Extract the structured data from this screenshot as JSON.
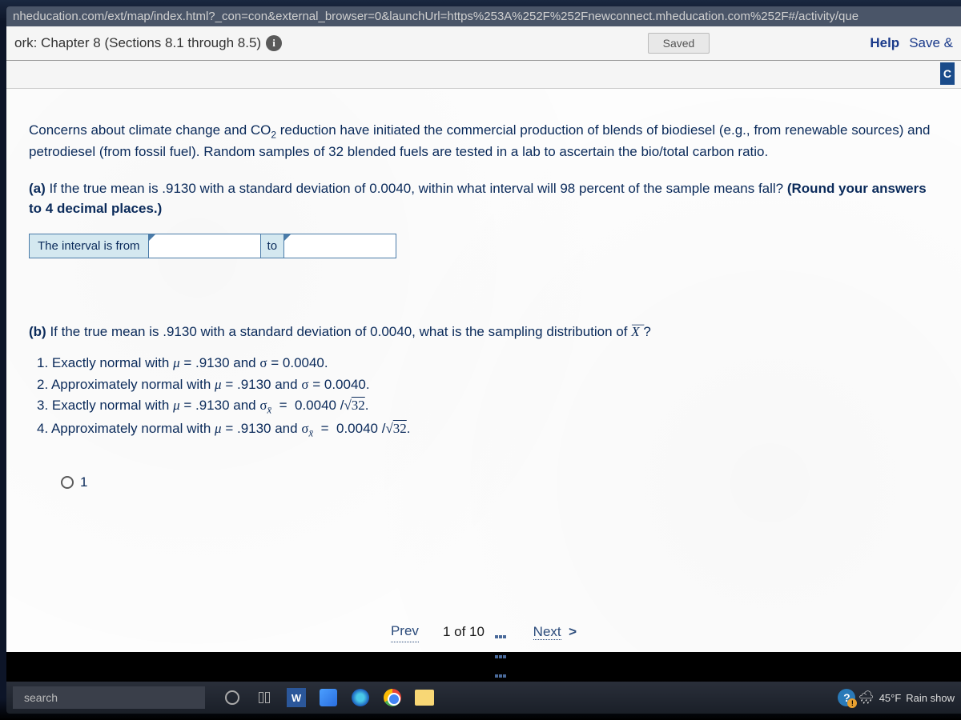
{
  "url": "nheducation.com/ext/map/index.html?_con=con&external_browser=0&launchUrl=https%253A%252F%252Fnewconnect.mheducation.com%252F#/activity/que",
  "header": {
    "title_prefix": "ork: Chapter 8 (Sections 8.1 through 8.5)",
    "saved_label": "Saved",
    "help_label": "Help",
    "save_exit_label": "Save &",
    "check_label": "C"
  },
  "question": {
    "intro": "Concerns about climate change and CO₂ reduction have initiated the commercial production of blends of biodiesel (e.g., from renewable sources) and petrodiesel (from fossil fuel). Random samples of 32 blended fuels are tested in a lab to ascertain the bio/total carbon ratio.",
    "part_a_prefix": "(a) ",
    "part_a_text": "If the true mean is .9130 with a standard deviation of 0.0040, within what interval will 98 percent of the sample means fall? ",
    "part_a_bold": "(Round your answers to 4 decimal places.)",
    "interval_label": "The interval is from",
    "to_label": "to",
    "part_b_prefix": "(b) ",
    "part_b_text": "If the true mean is .9130 with a standard deviation of 0.0040, what is the sampling distribution of ",
    "part_b_q": " ?",
    "options": {
      "o1": "1. Exactly normal with μ = .9130 and σ = 0.0040.",
      "o2": "2. Approximately normal with μ = .9130 and σ = 0.0040.",
      "o3_pre": "3. Exactly normal with μ = .9130 and ",
      "o3_mid": " = 0.0040 / ",
      "o3_sqrt": "32",
      "o3_end": ".",
      "o4_pre": "4. Approximately normal with μ = .9130 and ",
      "o4_mid": " = 0.0040 / ",
      "o4_sqrt": "32",
      "o4_end": "."
    },
    "radio1_label": "1"
  },
  "nav": {
    "prev": "Prev",
    "counter": "1 of 10",
    "next": "Next",
    "chevron": ">"
  },
  "taskbar": {
    "search_placeholder": "search",
    "weather_temp": "45°F",
    "weather_cond": "Rain show"
  }
}
